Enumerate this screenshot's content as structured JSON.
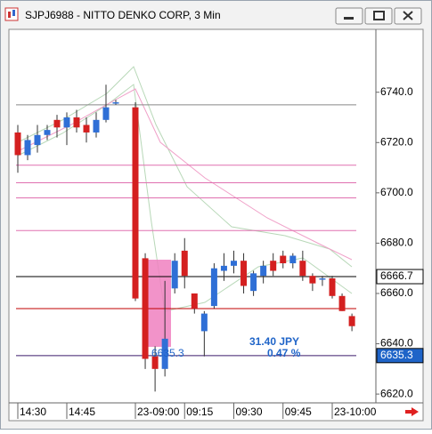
{
  "window_title": "SJPJ6988 - NITTO DENKO CORP, 3 Min",
  "chart_data": {
    "type": "candlestick",
    "categories": [
      "14:30",
      null,
      null,
      null,
      null,
      "14:45",
      null,
      null,
      null,
      null,
      null,
      "23-09:00",
      null,
      null,
      null,
      null,
      "09:15",
      null,
      null,
      null,
      null,
      "09:30",
      null,
      null,
      null,
      null,
      "09:45",
      null,
      null,
      null,
      null,
      "23-10:00",
      null,
      null
    ],
    "open": [
      6724,
      6715,
      6719,
      6723,
      6729,
      6726,
      6730,
      6727,
      6724,
      6729,
      6736,
      6734,
      6674,
      6635,
      6630,
      6662,
      6677,
      6660,
      6645,
      6655,
      6669,
      6671,
      6673,
      6661,
      6667,
      6673,
      6675,
      6672,
      6673,
      6667,
      6666,
      6666,
      6659,
      6651
    ],
    "high": [
      6727,
      6723,
      6727,
      6727,
      6731,
      6732,
      6733,
      6730,
      6732,
      6743,
      6737,
      6736,
      6676,
      6639,
      6665,
      6676,
      6682,
      6660,
      6653,
      6672,
      6676,
      6677,
      6676,
      6669,
      6673,
      6676,
      6677,
      6676,
      6677,
      6668,
      6667,
      6667,
      6660,
      6652
    ],
    "low": [
      6708,
      6713,
      6716,
      6721,
      6722,
      6719,
      6724,
      6720,
      6722,
      6728,
      6735,
      6657,
      6630,
      6621,
      6627,
      6660,
      6662,
      6652,
      6635,
      6654,
      6665,
      6668,
      6660,
      6659,
      6664,
      6667,
      6670,
      6670,
      6665,
      6661,
      6663,
      6658,
      6653,
      6645
    ],
    "close": [
      6715,
      6721,
      6723,
      6725,
      6726,
      6730,
      6726,
      6724,
      6729,
      6734,
      6736,
      6658,
      6634,
      6630,
      6642,
      6673,
      6667,
      6654,
      6652,
      6670,
      6671,
      6673,
      6663,
      6668,
      6671,
      6669,
      6672,
      6675,
      6667,
      6664,
      6666,
      6659,
      6653,
      6647
    ],
    "up_color": "#2f6fd6",
    "down_color": "#d42020",
    "ylim": [
      6616.5,
      6765
    ],
    "yticks": [
      {
        "value": 6740,
        "label": "6740.0"
      },
      {
        "value": 6720,
        "label": "6720.0"
      },
      {
        "value": 6700,
        "label": "6700.0"
      },
      {
        "value": 6680,
        "label": "6680.0"
      },
      {
        "value": 6660,
        "label": "6660.0"
      },
      {
        "value": 6640,
        "label": "6640.0"
      },
      {
        "value": 6620,
        "label": "6620.0"
      }
    ],
    "levels": [
      {
        "value": 6735,
        "color": "#888888"
      },
      {
        "value": 6711,
        "color": "#e070b0"
      },
      {
        "value": 6704,
        "color": "#e070b0"
      },
      {
        "value": 6698,
        "color": "#e070b0"
      },
      {
        "value": 6685,
        "color": "#e070b0"
      },
      {
        "value": 6666.7,
        "color": "#000000"
      },
      {
        "value": 6654,
        "color": "#c00000"
      },
      {
        "value": 6635.3,
        "color": "#3a1a6a"
      }
    ],
    "price_labels": [
      6666.7,
      6635.3
    ],
    "annotations": [
      "31.40 JPY",
      "0.47 %",
      "6635.3"
    ]
  }
}
